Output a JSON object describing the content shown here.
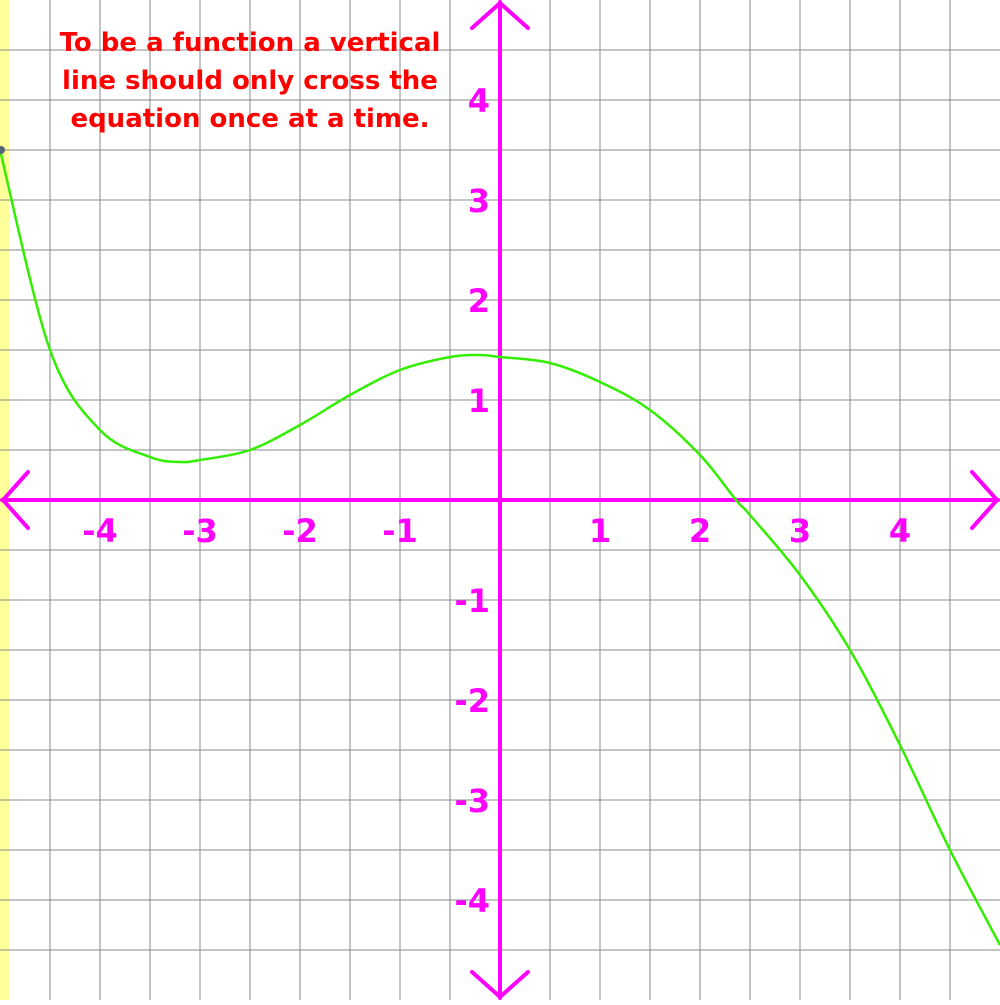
{
  "note": {
    "lines": [
      "To be a function a vertical",
      "line should only cross the",
      "equation once at a time."
    ]
  },
  "chart_data": {
    "type": "line",
    "title": "",
    "xlabel": "",
    "ylabel": "",
    "xlim": [
      -5,
      5
    ],
    "ylim": [
      -5,
      5
    ],
    "grid": true,
    "grid_step": 0.5,
    "x_ticks": [
      {
        "value": -4,
        "label": "-4"
      },
      {
        "value": -3,
        "label": "-3"
      },
      {
        "value": -2,
        "label": "-2"
      },
      {
        "value": -1,
        "label": "-1"
      },
      {
        "value": 1,
        "label": "1"
      },
      {
        "value": 2,
        "label": "2"
      },
      {
        "value": 3,
        "label": "3"
      },
      {
        "value": 4,
        "label": "4"
      }
    ],
    "y_ticks": [
      {
        "value": 4,
        "label": "4"
      },
      {
        "value": 3,
        "label": "3"
      },
      {
        "value": 2,
        "label": "2"
      },
      {
        "value": 1,
        "label": "1"
      },
      {
        "value": -1,
        "label": "-1"
      },
      {
        "value": -2,
        "label": "-2"
      },
      {
        "value": -3,
        "label": "-3"
      },
      {
        "value": -4,
        "label": "-4"
      }
    ],
    "series": [
      {
        "color": "#33ee00",
        "points": [
          [
            -5,
            3.5
          ],
          [
            -4.5,
            1.5
          ],
          [
            -4,
            0.7
          ],
          [
            -3.5,
            0.43
          ],
          [
            -3.2,
            0.38
          ],
          [
            -3,
            0.4
          ],
          [
            -2.5,
            0.5
          ],
          [
            -2,
            0.75
          ],
          [
            -1.5,
            1.05
          ],
          [
            -1,
            1.3
          ],
          [
            -0.5,
            1.43
          ],
          [
            -0.2,
            1.45
          ],
          [
            0,
            1.43
          ],
          [
            0.5,
            1.37
          ],
          [
            1,
            1.18
          ],
          [
            1.5,
            0.9
          ],
          [
            2,
            0.45
          ],
          [
            2.36,
            0
          ],
          [
            2.5,
            -0.15
          ],
          [
            3,
            -0.75
          ],
          [
            3.5,
            -1.5
          ],
          [
            4,
            -2.45
          ],
          [
            4.5,
            -3.5
          ],
          [
            5,
            -4.45
          ]
        ]
      }
    ],
    "colors": {
      "axis": "#ff00ff",
      "grid": "#888888",
      "note": "#ff0000",
      "left_strip": "#ffff99",
      "start_point": "#556677"
    }
  }
}
